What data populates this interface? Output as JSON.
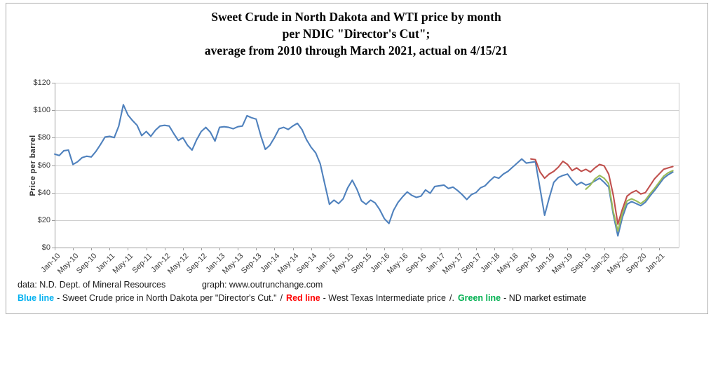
{
  "title": {
    "line1": "Sweet Crude in North Dakota and WTI price by month",
    "line2": "per NDIC \"Director's Cut\";",
    "line3": "average from 2010 through March 2021, actual on 4/15/21"
  },
  "footer": {
    "data_source": "data: N.D. Dept. of Mineral Resources",
    "graph_credit": "graph:  www.outrunchange.com"
  },
  "legend": {
    "items": [
      {
        "label": "Blue line",
        "color": "#00B0F0",
        "desc": "- Sweet Crude price in North Dakota per \"Director's Cut.\"",
        "sep": "/"
      },
      {
        "label": "Red line",
        "color": "#FF0000",
        "desc": "- West Texas Intermediate price",
        "sep": "/."
      },
      {
        "label": "Green line",
        "color": "#00B050",
        "desc": "- ND market estimate",
        "sep": ""
      }
    ]
  },
  "chart_data": {
    "type": "line",
    "title": "Sweet Crude in North Dakota and WTI price by month per NDIC \"Director's Cut\"; average from 2010 through March 2021, actual on 4/15/21",
    "xlabel": "",
    "ylabel": "Price per barrel",
    "ylim": [
      0,
      120
    ],
    "y_tick_step": 20,
    "y_tick_labels": [
      "$0",
      "$20",
      "$40",
      "$60",
      "$80",
      "$100",
      "$120"
    ],
    "grid": "horizontal",
    "legend_position": "below-chart-text",
    "x_months_total": 136,
    "x_first_month": "Jan-10",
    "x_last_month": "Apr-21",
    "x_tick_every_months": 4,
    "x_tick_labels": [
      "Jan-10",
      "May-10",
      "Sep-10",
      "Jan-11",
      "May-11",
      "Sep-11",
      "Jan-12",
      "May-12",
      "Sep-12",
      "Jan-13",
      "May-13",
      "Sep-13",
      "Jan-14",
      "May-14",
      "Sep-14",
      "Jan-15",
      "May-15",
      "Sep-15",
      "Jan-16",
      "May-16",
      "Sep-16",
      "Jan-17",
      "May-17",
      "Sep-17",
      "Jan-18",
      "May-18",
      "Sep-18",
      "Jan-19",
      "May-19",
      "Sep-19",
      "Jan-20",
      "May-20",
      "Sep-20",
      "Jan-21"
    ],
    "series": [
      {
        "name": "Sweet Crude price in North Dakota per \"Director's Cut.\"",
        "color": "#4F81BD",
        "start_month": "Jan-10",
        "start_index": 0,
        "values": [
          68,
          67,
          70.5,
          71,
          60.5,
          62.5,
          65.5,
          66.5,
          66,
          70,
          75,
          80.5,
          81,
          80,
          88.5,
          104,
          96.5,
          92.5,
          89,
          81.5,
          84.5,
          81,
          85.5,
          88.5,
          89,
          88.5,
          83,
          78,
          80,
          74.5,
          71,
          78.5,
          84.5,
          87.5,
          84,
          77.5,
          87.5,
          88,
          87.5,
          86.5,
          88,
          88.5,
          96,
          94.5,
          93.5,
          81.5,
          71.5,
          74.5,
          80,
          86.5,
          87.5,
          86,
          88.5,
          90.5,
          86,
          78.5,
          73,
          69,
          61,
          46,
          31.5,
          34.5,
          32,
          35.5,
          43.5,
          49,
          42.5,
          34,
          31.5,
          34.5,
          32.5,
          27.5,
          21,
          17.5,
          27,
          33,
          37,
          40.5,
          38,
          36.5,
          37.5,
          42,
          39.5,
          44.5,
          45,
          45.5,
          43,
          44,
          41.5,
          38.5,
          35,
          38.5,
          40,
          43.5,
          45,
          48.5,
          51.5,
          50.5,
          53.5,
          55.5,
          58.5,
          61.5,
          64.5,
          61.5,
          62,
          62.5,
          43,
          23.5,
          36,
          47.5,
          51,
          52.5,
          53.5,
          49,
          45.5,
          47.5,
          45.5,
          46.5,
          48.5,
          50.5,
          47.5,
          44,
          24,
          8.5,
          22,
          31.5,
          33.5,
          32,
          30.5,
          33,
          37.5,
          41.5,
          46,
          50.5,
          53,
          55
        ]
      },
      {
        "name": "West Texas Intermediate price",
        "color": "#C0504D",
        "start_month": "Sep-18",
        "start_index": 104,
        "values": [
          64.5,
          64,
          55,
          50.5,
          53.5,
          55.5,
          58.5,
          62.8,
          60.5,
          56,
          58,
          55.5,
          57,
          55,
          58,
          60.5,
          59.5,
          53.5,
          38,
          17,
          28,
          37.5,
          40,
          41.5,
          39,
          40,
          45,
          50,
          53.5,
          57,
          58,
          59
        ]
      },
      {
        "name": "ND market estimate",
        "color": "#9BBB59",
        "start_month": "Sep-19",
        "start_index": 116,
        "values": [
          42.5,
          45.5,
          50,
          52.5,
          50.5,
          46.5,
          26,
          12,
          25,
          34,
          35.5,
          34,
          32,
          34.5,
          39,
          43,
          47.5,
          52,
          54.5,
          56
        ]
      }
    ]
  }
}
